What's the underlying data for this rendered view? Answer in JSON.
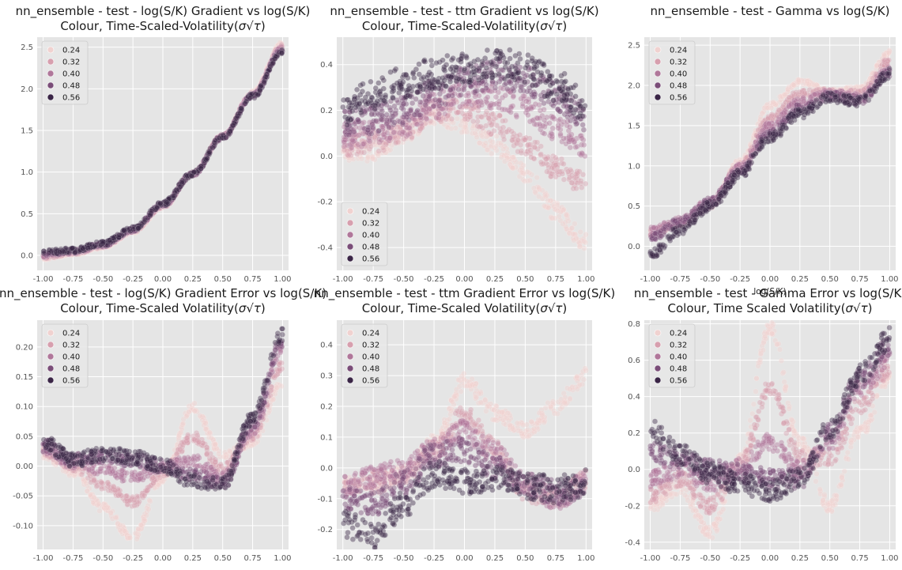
{
  "chart_data": [
    {
      "type": "scatter",
      "title_line1": "nn_ensemble - test - log(S/K) Gradient vs log(S/K)",
      "title_line2_prefix": "Colour, Time-Scaled-Volatility(",
      "title_line2_suffix": ")",
      "xlabel": "",
      "xlim": [
        -1.05,
        1.05
      ],
      "ylim": [
        -0.18,
        2.62
      ],
      "xticks": [
        "-1.00",
        "-0.75",
        "-0.50",
        "-0.25",
        "0.00",
        "0.25",
        "0.50",
        "0.75",
        "1.00"
      ],
      "yticks": [
        "0.0",
        "0.5",
        "1.0",
        "1.5",
        "2.0",
        "2.5"
      ],
      "legend_position": "top-left",
      "legend": [
        "0.24",
        "0.32",
        "0.40",
        "0.48",
        "0.56"
      ],
      "grid": true,
      "x": [
        -1.0,
        -0.75,
        -0.5,
        -0.25,
        0.0,
        0.25,
        0.5,
        0.75,
        1.0
      ],
      "series": [
        {
          "name": "0.24",
          "y": [
            -0.04,
            0.02,
            0.1,
            0.28,
            0.58,
            0.98,
            1.44,
            1.96,
            2.55
          ]
        },
        {
          "name": "0.32",
          "y": [
            -0.02,
            0.03,
            0.11,
            0.29,
            0.59,
            0.98,
            1.43,
            1.94,
            2.52
          ]
        },
        {
          "name": "0.40",
          "y": [
            0.0,
            0.04,
            0.12,
            0.3,
            0.6,
            0.98,
            1.43,
            1.93,
            2.49
          ]
        },
        {
          "name": "0.48",
          "y": [
            0.02,
            0.05,
            0.13,
            0.31,
            0.61,
            0.98,
            1.42,
            1.92,
            2.47
          ]
        },
        {
          "name": "0.56",
          "y": [
            0.04,
            0.06,
            0.14,
            0.32,
            0.62,
            0.98,
            1.42,
            1.91,
            2.45
          ]
        }
      ],
      "band": 0.03
    },
    {
      "type": "scatter",
      "title_line1": "nn_ensemble - test - ttm Gradient vs log(S/K)",
      "title_line2_prefix": "Colour, Time-Scaled-Volatility(",
      "title_line2_suffix": ")",
      "xlabel": "",
      "xlim": [
        -1.05,
        1.05
      ],
      "ylim": [
        -0.5,
        0.52
      ],
      "xticks": [
        "-1.00",
        "-0.75",
        "-0.50",
        "-0.25",
        "0.00",
        "0.25",
        "0.50",
        "0.75",
        "1.00"
      ],
      "yticks": [
        "-0.4",
        "-0.2",
        "0.0",
        "0.2",
        "0.4"
      ],
      "legend_position": "bottom-left",
      "legend": [
        "0.24",
        "0.32",
        "0.40",
        "0.48",
        "0.56"
      ],
      "grid": true,
      "x": [
        -1.0,
        -0.75,
        -0.5,
        -0.25,
        0.0,
        0.25,
        0.5,
        0.75,
        1.0
      ],
      "series": [
        {
          "name": "0.24",
          "y": [
            0.02,
            0.02,
            0.1,
            0.18,
            0.14,
            0.05,
            -0.08,
            -0.24,
            -0.38
          ]
        },
        {
          "name": "0.32",
          "y": [
            0.05,
            0.06,
            0.11,
            0.2,
            0.2,
            0.14,
            0.05,
            -0.05,
            -0.12
          ]
        },
        {
          "name": "0.40",
          "y": [
            0.09,
            0.1,
            0.14,
            0.22,
            0.27,
            0.26,
            0.21,
            0.12,
            0.05
          ]
        },
        {
          "name": "0.48",
          "y": [
            0.14,
            0.16,
            0.2,
            0.27,
            0.33,
            0.36,
            0.33,
            0.26,
            0.17
          ]
        },
        {
          "name": "0.56",
          "y": [
            0.2,
            0.27,
            0.32,
            0.36,
            0.39,
            0.41,
            0.38,
            0.31,
            0.22
          ]
        }
      ],
      "band": 0.07
    },
    {
      "type": "scatter",
      "title_line1": "nn_ensemble - test - Gamma vs log(S/K)",
      "title_line2_prefix": "",
      "title_line2_suffix": "",
      "xlabel": "log(S/K)",
      "xlim": [
        -1.05,
        1.05
      ],
      "ylim": [
        -0.3,
        2.6
      ],
      "xticks": [
        "-1.00",
        "-0.75",
        "-0.50",
        "-0.25",
        "0.00",
        "0.25",
        "0.50",
        "0.75",
        "1.00"
      ],
      "yticks": [
        "0.0",
        "0.5",
        "1.0",
        "1.5",
        "2.0",
        "2.5"
      ],
      "legend_position": "top-left",
      "legend": [
        "0.24",
        "0.32",
        "0.40",
        "0.48",
        "0.56"
      ],
      "grid": true,
      "x": [
        -1.0,
        -0.75,
        -0.5,
        -0.25,
        0.0,
        0.25,
        0.5,
        0.75,
        1.0
      ],
      "series": [
        {
          "name": "0.24",
          "y": [
            0.15,
            0.28,
            0.5,
            1.05,
            1.75,
            2.05,
            1.92,
            1.95,
            2.4
          ]
        },
        {
          "name": "0.32",
          "y": [
            0.17,
            0.3,
            0.52,
            1.0,
            1.6,
            1.9,
            1.92,
            1.9,
            2.3
          ]
        },
        {
          "name": "0.40",
          "y": [
            0.19,
            0.32,
            0.55,
            0.98,
            1.5,
            1.8,
            1.9,
            1.85,
            2.2
          ]
        },
        {
          "name": "0.48",
          "y": [
            0.1,
            0.3,
            0.55,
            0.95,
            1.4,
            1.72,
            1.88,
            1.82,
            2.15
          ]
        },
        {
          "name": "0.56",
          "y": [
            -0.1,
            0.2,
            0.5,
            0.9,
            1.35,
            1.65,
            1.85,
            1.8,
            2.15
          ]
        }
      ],
      "band": 0.06
    },
    {
      "type": "scatter",
      "title_line1": "nn_ensemble - test - log(S/K) Gradient Error vs log(S/K)",
      "title_line2_prefix": "Colour, Time-Scaled Volatility(",
      "title_line2_suffix": ")",
      "xlabel": "",
      "xlim": [
        -1.05,
        1.05
      ],
      "ylim": [
        -0.14,
        0.245
      ],
      "xticks": [
        "-1.00",
        "-0.75",
        "-0.50",
        "-0.25",
        "0.00",
        "0.25",
        "0.50",
        "0.75",
        "1.00"
      ],
      "yticks": [
        "-0.10",
        "-0.05",
        "0.00",
        "0.05",
        "0.10",
        "0.15",
        "0.20"
      ],
      "legend_position": "top-left",
      "legend": [
        "0.24",
        "0.32",
        "0.40",
        "0.48",
        "0.56"
      ],
      "grid": true,
      "x": [
        -1.0,
        -0.75,
        -0.5,
        -0.25,
        0.0,
        0.25,
        0.5,
        0.75,
        1.0
      ],
      "series": [
        {
          "name": "0.24",
          "y": [
            0.02,
            -0.01,
            -0.07,
            -0.12,
            -0.02,
            0.1,
            0.02,
            0.04,
            0.14
          ]
        },
        {
          "name": "0.32",
          "y": [
            0.025,
            0.0,
            -0.03,
            -0.06,
            -0.01,
            0.05,
            -0.005,
            0.05,
            0.17
          ]
        },
        {
          "name": "0.40",
          "y": [
            0.03,
            0.005,
            -0.005,
            -0.02,
            0.0,
            0.01,
            -0.02,
            0.06,
            0.2
          ]
        },
        {
          "name": "0.48",
          "y": [
            0.035,
            0.01,
            0.015,
            0.01,
            0.0,
            -0.015,
            -0.03,
            0.07,
            0.21
          ]
        },
        {
          "name": "0.56",
          "y": [
            0.04,
            0.01,
            0.02,
            0.015,
            0.0,
            -0.025,
            -0.03,
            0.08,
            0.22
          ]
        }
      ],
      "band": 0.012
    },
    {
      "type": "scatter",
      "title_line1": "nn_ensemble - test - ttm Gradient Error vs log(S/K)",
      "title_line2_prefix": "Colour, Time-Scaled Volatility(",
      "title_line2_suffix": ")",
      "xlabel": "",
      "xlim": [
        -1.05,
        1.05
      ],
      "ylim": [
        -0.265,
        0.48
      ],
      "xticks": [
        "-1.00",
        "-0.75",
        "-0.50",
        "-0.25",
        "0.00",
        "0.25",
        "0.50",
        "0.75",
        "1.00"
      ],
      "yticks": [
        "-0.2",
        "-0.1",
        "0.0",
        "0.1",
        "0.2",
        "0.3",
        "0.4"
      ],
      "legend_position": "top-left",
      "legend": [
        "0.24",
        "0.32",
        "0.40",
        "0.48",
        "0.56"
      ],
      "grid": true,
      "x": [
        -1.0,
        -0.75,
        -0.5,
        -0.25,
        0.0,
        0.25,
        0.5,
        0.75,
        1.0
      ],
      "series": [
        {
          "name": "0.24",
          "y": [
            -0.05,
            -0.06,
            -0.02,
            0.08,
            0.28,
            0.18,
            0.12,
            0.2,
            0.3
          ]
        },
        {
          "name": "0.32",
          "y": [
            -0.06,
            -0.04,
            -0.02,
            0.06,
            0.17,
            0.07,
            -0.08,
            -0.1,
            -0.04
          ]
        },
        {
          "name": "0.40",
          "y": [
            -0.06,
            -0.03,
            0.0,
            0.06,
            0.12,
            0.05,
            -0.05,
            -0.1,
            -0.05
          ]
        },
        {
          "name": "0.48",
          "y": [
            -0.1,
            -0.12,
            -0.05,
            0.04,
            0.06,
            0.0,
            -0.05,
            -0.08,
            -0.06
          ]
        },
        {
          "name": "0.56",
          "y": [
            -0.18,
            -0.22,
            -0.12,
            -0.02,
            -0.04,
            -0.03,
            -0.06,
            -0.07,
            -0.05
          ]
        }
      ],
      "band": 0.045
    },
    {
      "type": "scatter",
      "title_line1": "nn_ensemble - test - Gamma Error vs log(S/K)",
      "title_line2_prefix": "Colour, Time Scaled Volatility(",
      "title_line2_suffix": ")",
      "xlabel": "",
      "xlim": [
        -1.05,
        1.05
      ],
      "ylim": [
        -0.44,
        0.82
      ],
      "xticks": [
        "-1.00",
        "-0.75",
        "-0.50",
        "-0.25",
        "0.00",
        "0.25",
        "0.50",
        "0.75",
        "1.00"
      ],
      "yticks": [
        "-0.4",
        "-0.2",
        "0.0",
        "0.2",
        "0.4",
        "0.6",
        "0.8"
      ],
      "legend_position": "top-left",
      "legend": [
        "0.24",
        "0.32",
        "0.40",
        "0.48",
        "0.56"
      ],
      "grid": true,
      "x": [
        -1.0,
        -0.75,
        -0.5,
        -0.25,
        0.0,
        0.25,
        0.5,
        0.75,
        1.0
      ],
      "series": [
        {
          "name": "0.24",
          "y": [
            -0.2,
            -0.1,
            -0.35,
            0.05,
            0.78,
            0.15,
            -0.2,
            0.2,
            0.5
          ]
        },
        {
          "name": "0.32",
          "y": [
            -0.15,
            -0.05,
            -0.2,
            0.02,
            0.45,
            0.08,
            0.05,
            0.35,
            0.55
          ]
        },
        {
          "name": "0.40",
          "y": [
            -0.05,
            0.0,
            -0.08,
            0.02,
            0.15,
            0.0,
            0.15,
            0.45,
            0.6
          ]
        },
        {
          "name": "0.48",
          "y": [
            0.1,
            0.05,
            0.0,
            -0.02,
            -0.05,
            -0.05,
            0.2,
            0.5,
            0.68
          ]
        },
        {
          "name": "0.56",
          "y": [
            0.22,
            0.08,
            -0.02,
            -0.08,
            -0.12,
            -0.05,
            0.22,
            0.52,
            0.72
          ]
        }
      ],
      "band": 0.06
    }
  ],
  "palette": [
    "#f0d2d0",
    "#d79fae",
    "#b0779a",
    "#7a4d78",
    "#3a2546"
  ],
  "colors": {
    "plot_bg": "#e5e5e5",
    "grid": "#ffffff",
    "legend_bg": "#e8e8e8",
    "legend_border": "#cccccc"
  },
  "sigma_tau": "σ√τ"
}
